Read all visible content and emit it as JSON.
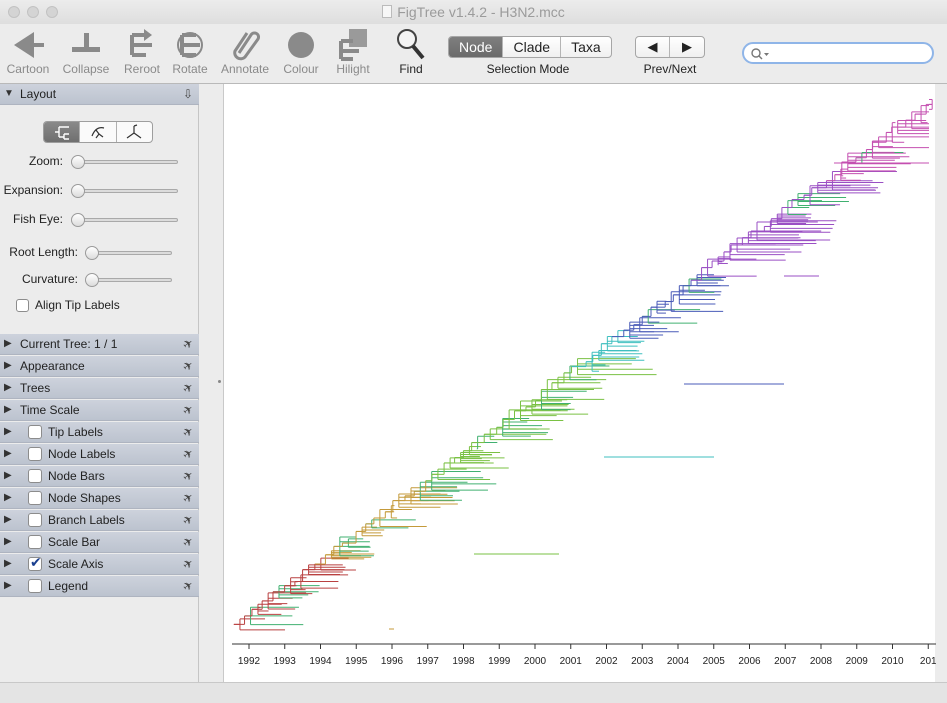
{
  "window": {
    "title": "FigTree v1.4.2 - H3N2.mcc"
  },
  "toolbar": {
    "tools": [
      {
        "label": "Cartoon",
        "icon": "cartoon-icon",
        "active": false
      },
      {
        "label": "Collapse",
        "icon": "collapse-icon",
        "active": false
      },
      {
        "label": "Reroot",
        "icon": "reroot-icon",
        "active": false
      },
      {
        "label": "Rotate",
        "icon": "rotate-icon",
        "active": false
      },
      {
        "label": "Annotate",
        "icon": "paperclip-icon",
        "active": false
      },
      {
        "label": "Colour",
        "icon": "colour-circle-icon",
        "active": false
      },
      {
        "label": "Hilight",
        "icon": "hilight-icon",
        "active": false
      },
      {
        "label": "Find",
        "icon": "magnifier-icon",
        "active": true
      }
    ],
    "selection_mode": {
      "options": [
        "Node",
        "Clade",
        "Taxa"
      ],
      "selected": "Node",
      "label": "Selection Mode"
    },
    "prev_next": {
      "prev": "◀",
      "next": "▶",
      "label": "Prev/Next"
    },
    "search": {
      "value": "",
      "placeholder": "",
      "icon": "search-icon"
    }
  },
  "panel": {
    "layout": {
      "title": "Layout",
      "sliders": [
        {
          "label": "Zoom:",
          "value": 0
        },
        {
          "label": "Expansion:",
          "value": 0
        },
        {
          "label": "Fish Eye:",
          "value": 0
        },
        {
          "label": "Root Length:",
          "value": 0
        },
        {
          "label": "Curvature:",
          "value": 0
        }
      ],
      "align_tip_labels": {
        "label": "Align Tip Labels",
        "checked": false
      }
    },
    "sections": [
      {
        "title": "Current Tree: 1 / 1",
        "checkbox": null
      },
      {
        "title": "Appearance",
        "checkbox": null
      },
      {
        "title": "Trees",
        "checkbox": null
      },
      {
        "title": "Time Scale",
        "checkbox": null
      },
      {
        "title": "Tip Labels",
        "checkbox": false
      },
      {
        "title": "Node Labels",
        "checkbox": false
      },
      {
        "title": "Node Bars",
        "checkbox": false
      },
      {
        "title": "Node Shapes",
        "checkbox": false
      },
      {
        "title": "Branch Labels",
        "checkbox": false
      },
      {
        "title": "Scale Bar",
        "checkbox": false
      },
      {
        "title": "Scale Axis",
        "checkbox": true
      },
      {
        "title": "Legend",
        "checkbox": false
      }
    ]
  },
  "tree": {
    "axis_years": [
      "1992",
      "1993",
      "1994",
      "1995",
      "1996",
      "1997",
      "1998",
      "1999",
      "2000",
      "2001",
      "2002",
      "2003",
      "2004",
      "2005",
      "2006",
      "2007",
      "2008",
      "2009",
      "2010",
      "201"
    ],
    "clade_colors": [
      "#b94040",
      "#c49a3a",
      "#7ac143",
      "#3fbfbf",
      "#4a5bb8",
      "#9a4fc4",
      "#c44fb0",
      "#40b070"
    ]
  }
}
